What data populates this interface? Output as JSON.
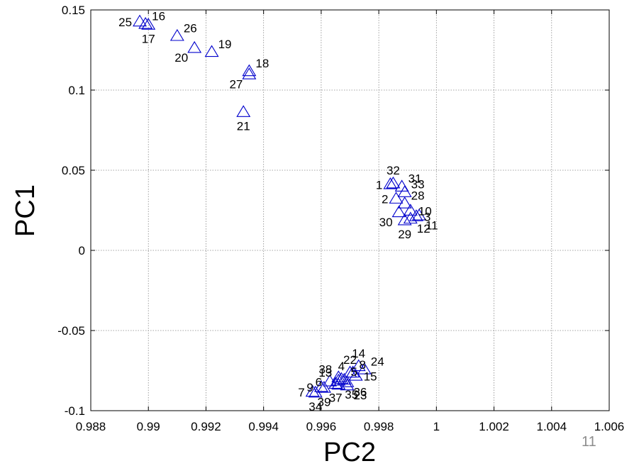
{
  "chart_data": {
    "type": "scatter",
    "title": "",
    "xlabel": "PC2",
    "ylabel": "PC1",
    "xlim": [
      0.988,
      1.006
    ],
    "ylim": [
      -0.1,
      0.15
    ],
    "xticks": [
      0.988,
      0.99,
      0.992,
      0.994,
      0.996,
      0.998,
      1,
      1.002,
      1.004,
      1.006
    ],
    "xtick_labels": [
      "0.988",
      "0.99",
      "0.992",
      "0.994",
      "0.996",
      "0.998",
      "1",
      "1.002",
      "1.004",
      "1.006"
    ],
    "yticks": [
      -0.1,
      -0.05,
      0,
      0.05,
      0.1,
      0.15
    ],
    "ytick_labels": [
      "-0.1",
      "-0.05",
      "0",
      "0.05",
      "0.1",
      "0.15"
    ],
    "grid": true,
    "marker": "triangle",
    "marker_color": "#0000cc",
    "points": [
      {
        "label": "25",
        "x": 0.9897,
        "y": 0.1425,
        "label_pos": "w"
      },
      {
        "label": "16",
        "x": 0.9899,
        "y": 0.141,
        "label_pos": "ne"
      },
      {
        "label": "17",
        "x": 0.99,
        "y": 0.1405,
        "label_pos": "s"
      },
      {
        "label": "26",
        "x": 0.991,
        "y": 0.1335,
        "label_pos": "ne"
      },
      {
        "label": "20",
        "x": 0.9916,
        "y": 0.126,
        "label_pos": "sw"
      },
      {
        "label": "19",
        "x": 0.9922,
        "y": 0.1235,
        "label_pos": "ne"
      },
      {
        "label": "18",
        "x": 0.9935,
        "y": 0.1115,
        "label_pos": "ne"
      },
      {
        "label": "27",
        "x": 0.9935,
        "y": 0.1095,
        "label_pos": "sw"
      },
      {
        "label": "21",
        "x": 0.9933,
        "y": 0.086,
        "label_pos": "s"
      },
      {
        "label": "1",
        "x": 0.9984,
        "y": 0.041,
        "label_pos": "w"
      },
      {
        "label": "32",
        "x": 0.9985,
        "y": 0.0415,
        "label_pos": "n"
      },
      {
        "label": "31",
        "x": 0.9988,
        "y": 0.0395,
        "label_pos": "ne"
      },
      {
        "label": "33",
        "x": 0.9989,
        "y": 0.036,
        "label_pos": "ne"
      },
      {
        "label": "2",
        "x": 0.9986,
        "y": 0.032,
        "label_pos": "w"
      },
      {
        "label": "28",
        "x": 0.9989,
        "y": 0.029,
        "label_pos": "ne"
      },
      {
        "label": "10",
        "x": 0.9991,
        "y": 0.0245,
        "label_pos": "e"
      },
      {
        "label": "3",
        "x": 0.9993,
        "y": 0.021,
        "label_pos": "e"
      },
      {
        "label": "30",
        "x": 0.9987,
        "y": 0.0235,
        "label_pos": "sw"
      },
      {
        "label": "12",
        "x": 0.9991,
        "y": 0.0195,
        "label_pos": "se"
      },
      {
        "label": "11",
        "x": 0.9994,
        "y": 0.0215,
        "label_pos": "se"
      },
      {
        "label": "29",
        "x": 0.9989,
        "y": 0.0185,
        "label_pos": "s"
      },
      {
        "label": "14",
        "x": 0.9973,
        "y": -0.0725,
        "label_pos": "n"
      },
      {
        "label": "22",
        "x": 0.997,
        "y": -0.0765,
        "label_pos": "n"
      },
      {
        "label": "8",
        "x": 0.9971,
        "y": -0.0765,
        "label_pos": "ne"
      },
      {
        "label": "24",
        "x": 0.9975,
        "y": -0.0745,
        "label_pos": "ne"
      },
      {
        "label": "15",
        "x": 0.9972,
        "y": -0.0785,
        "label_pos": "e"
      },
      {
        "label": "38",
        "x": 0.9966,
        "y": -0.0795,
        "label_pos": "nw"
      },
      {
        "label": "6",
        "x": 0.9963,
        "y": -0.082,
        "label_pos": "w"
      },
      {
        "label": "13",
        "x": 0.9966,
        "y": -0.0815,
        "label_pos": "nw"
      },
      {
        "label": "4",
        "x": 0.9967,
        "y": -0.0805,
        "label_pos": "n"
      },
      {
        "label": "5",
        "x": 0.9968,
        "y": -0.081,
        "label_pos": "ne"
      },
      {
        "label": "36",
        "x": 0.9969,
        "y": -0.0825,
        "label_pos": "se"
      },
      {
        "label": "35",
        "x": 0.9966,
        "y": -0.084,
        "label_pos": "se"
      },
      {
        "label": "23",
        "x": 0.9969,
        "y": -0.0845,
        "label_pos": "se"
      },
      {
        "label": "37",
        "x": 0.9965,
        "y": -0.0835,
        "label_pos": "s"
      },
      {
        "label": "9",
        "x": 0.996,
        "y": -0.0855,
        "label_pos": "w"
      },
      {
        "label": "39",
        "x": 0.9961,
        "y": -0.086,
        "label_pos": "s"
      },
      {
        "label": "7",
        "x": 0.9957,
        "y": -0.0885,
        "label_pos": "w"
      },
      {
        "label": "34",
        "x": 0.9958,
        "y": -0.089,
        "label_pos": "s"
      }
    ]
  },
  "slide_number": "11"
}
